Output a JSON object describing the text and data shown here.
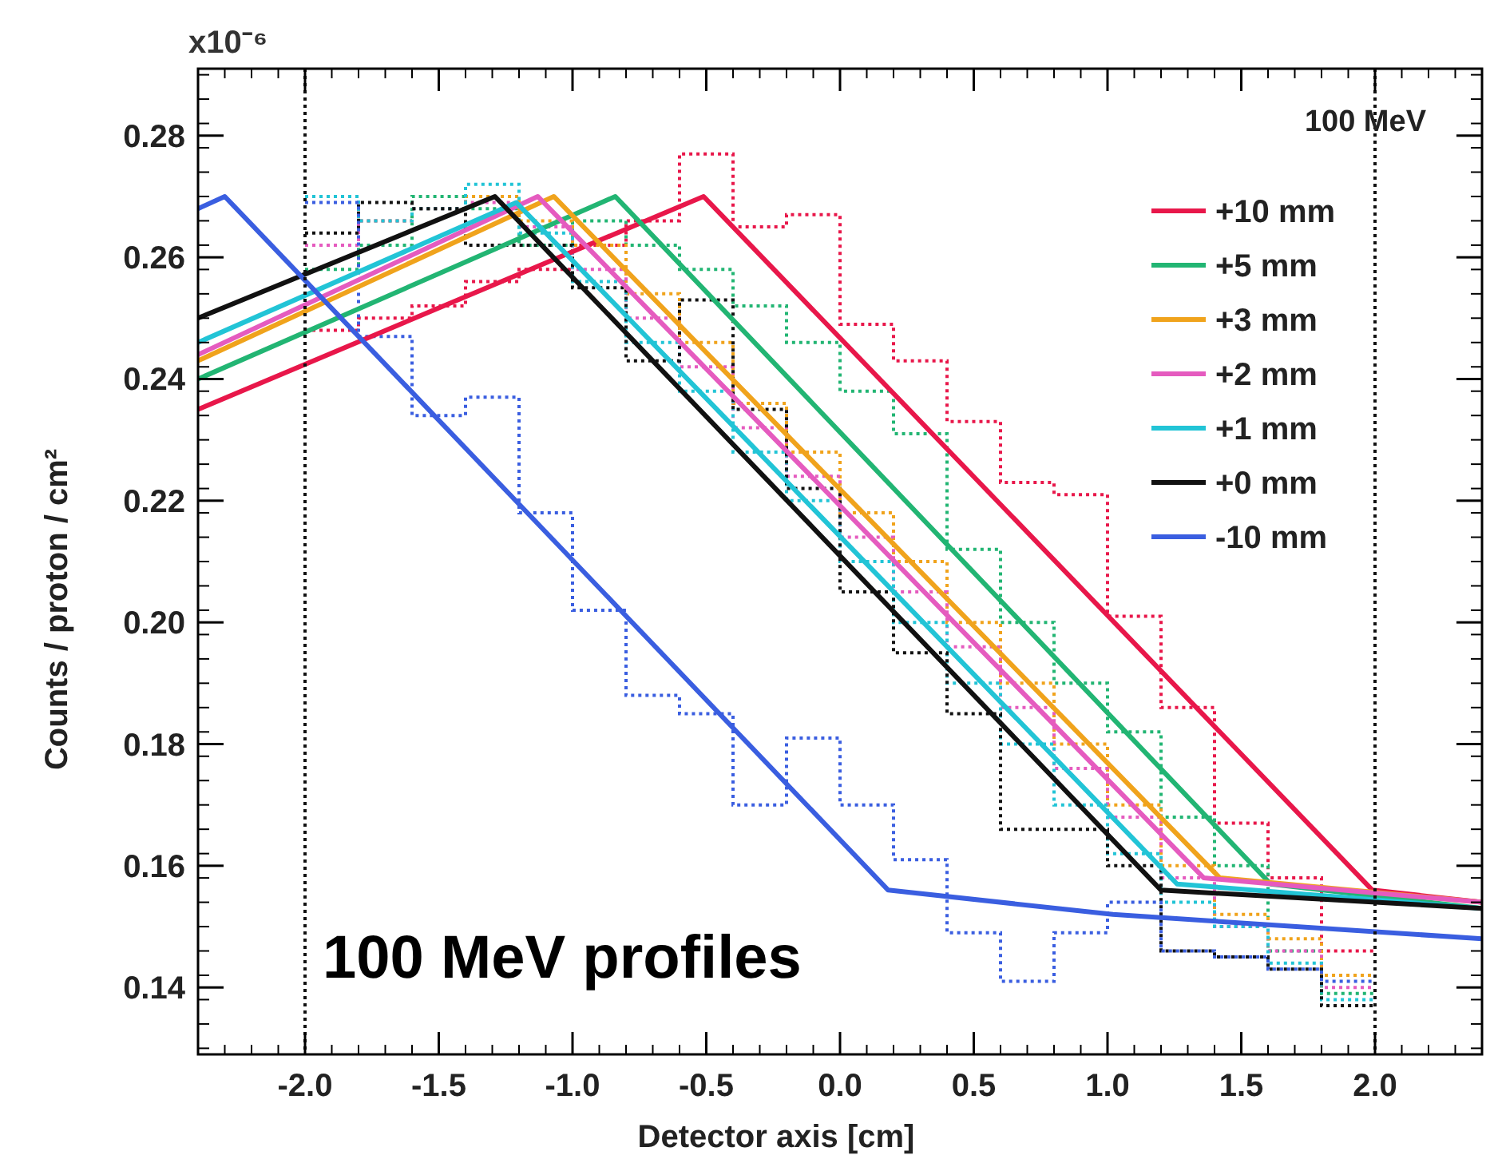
{
  "chart_data": {
    "type": "line",
    "ylabel": "Counts / proton / cm²",
    "xlabel": "Detector axis [cm]",
    "legend_title": "100 MeV",
    "annotations": [
      "x10⁻⁶",
      "100 MeV profiles"
    ],
    "xlim": [
      -2.4,
      2.4
    ],
    "ylim": [
      0.129,
      0.291
    ],
    "xticks": [
      {
        "value": -2,
        "label": "-2.0"
      },
      {
        "value": -1.5,
        "label": "-1.5"
      },
      {
        "value": -1,
        "label": "-1.0"
      },
      {
        "value": -0.5,
        "label": "-0.5"
      },
      {
        "value": 0,
        "label": "0.0"
      },
      {
        "value": 0.5,
        "label": "0.5"
      },
      {
        "value": 1,
        "label": "1.0"
      },
      {
        "value": 1.5,
        "label": "1.5"
      },
      {
        "value": 2,
        "label": "2.0"
      }
    ],
    "yticks": [
      {
        "value": 0.14,
        "label": "0.14"
      },
      {
        "value": 0.16,
        "label": "0.16"
      },
      {
        "value": 0.18,
        "label": "0.18"
      },
      {
        "value": 0.2,
        "label": "0.20"
      },
      {
        "value": 0.22,
        "label": "0.22"
      },
      {
        "value": 0.24,
        "label": "0.24"
      },
      {
        "value": 0.26,
        "label": "0.26"
      },
      {
        "value": 0.28,
        "label": "0.28"
      }
    ],
    "grid": false,
    "legend": "top right",
    "marker": "none",
    "ref_lines": [
      {
        "axis": "x",
        "value": -2,
        "label": null,
        "color": "#111111",
        "line_style": "dotted"
      },
      {
        "axis": "x",
        "value": 2,
        "label": null,
        "color": "#111111",
        "line_style": "dotted"
      }
    ],
    "series": [
      {
        "type": "histogram",
        "line_style": "dotted",
        "color": "#e8174a",
        "bins": [
          -2,
          -1.8,
          -1.6,
          -1.4,
          -1.2,
          -1,
          -0.8,
          -0.6,
          -0.4,
          -0.2,
          0,
          0.2,
          0.4,
          0.6,
          0.8,
          1,
          1.2,
          1.4,
          1.6,
          1.8,
          2
        ],
        "values": [
          0.248,
          0.25,
          0.252,
          0.256,
          0.258,
          0.262,
          0.266,
          0.277,
          0.265,
          0.267,
          0.249,
          0.243,
          0.233,
          0.223,
          0.221,
          0.201,
          0.186,
          0.167,
          0.158,
          0.146
        ]
      },
      {
        "type": "histogram",
        "line_style": "dotted",
        "color": "#22b573",
        "bins": [
          -2,
          -1.8,
          -1.6,
          -1.4,
          -1.2,
          -1,
          -0.8,
          -0.6,
          -0.4,
          -0.2,
          0,
          0.2,
          0.4,
          0.6,
          0.8,
          1,
          1.2,
          1.4,
          1.6,
          1.8,
          2
        ],
        "values": [
          0.258,
          0.262,
          0.27,
          0.268,
          0.262,
          0.266,
          0.262,
          0.258,
          0.252,
          0.246,
          0.238,
          0.231,
          0.212,
          0.2,
          0.19,
          0.182,
          0.168,
          0.16,
          0.146,
          0.139
        ]
      },
      {
        "type": "histogram",
        "line_style": "dotted",
        "color": "#f0a31c",
        "bins": [
          -2,
          -1.8,
          -1.6,
          -1.4,
          -1.2,
          -1,
          -0.8,
          -0.6,
          -0.4,
          -0.2,
          0,
          0.2,
          0.4,
          0.6,
          0.8,
          1,
          1.2,
          1.4,
          1.6,
          1.8,
          2
        ],
        "values": [
          0.262,
          0.266,
          0.268,
          0.27,
          0.266,
          0.262,
          0.254,
          0.246,
          0.236,
          0.228,
          0.218,
          0.21,
          0.2,
          0.19,
          0.18,
          0.17,
          0.16,
          0.152,
          0.148,
          0.142
        ]
      },
      {
        "type": "histogram",
        "line_style": "dotted",
        "color": "#e55bbf",
        "bins": [
          -2,
          -1.8,
          -1.6,
          -1.4,
          -1.2,
          -1,
          -0.8,
          -0.6,
          -0.4,
          -0.2,
          0,
          0.2,
          0.4,
          0.6,
          0.8,
          1,
          1.2,
          1.4,
          1.6,
          1.8,
          2
        ],
        "values": [
          0.262,
          0.266,
          0.268,
          0.269,
          0.265,
          0.258,
          0.25,
          0.242,
          0.232,
          0.224,
          0.214,
          0.205,
          0.196,
          0.186,
          0.176,
          0.168,
          0.158,
          0.15,
          0.146,
          0.14
        ]
      },
      {
        "type": "histogram",
        "line_style": "dotted",
        "color": "#22c4d6",
        "bins": [
          -2,
          -1.8,
          -1.6,
          -1.4,
          -1.2,
          -1,
          -0.8,
          -0.6,
          -0.4,
          -0.2,
          0,
          0.2,
          0.4,
          0.6,
          0.8,
          1,
          1.2,
          1.4,
          1.6,
          1.8,
          2
        ],
        "values": [
          0.27,
          0.266,
          0.268,
          0.272,
          0.264,
          0.256,
          0.246,
          0.238,
          0.228,
          0.22,
          0.21,
          0.2,
          0.19,
          0.18,
          0.17,
          0.162,
          0.154,
          0.15,
          0.144,
          0.138
        ]
      },
      {
        "type": "histogram",
        "line_style": "dotted",
        "color": "#111111",
        "bins": [
          -2,
          -1.8,
          -1.6,
          -1.4,
          -1.2,
          -1,
          -0.8,
          -0.6,
          -0.4,
          -0.2,
          0,
          0.2,
          0.4,
          0.6,
          0.8,
          1,
          1.2,
          1.4,
          1.6,
          1.8,
          2
        ],
        "values": [
          0.264,
          0.269,
          0.268,
          0.262,
          0.262,
          0.255,
          0.243,
          0.253,
          0.235,
          0.222,
          0.205,
          0.195,
          0.185,
          0.166,
          0.166,
          0.16,
          0.146,
          0.145,
          0.143,
          0.137
        ]
      },
      {
        "type": "histogram",
        "line_style": "dotted",
        "color": "#3a5ee0",
        "bins": [
          -2,
          -1.8,
          -1.6,
          -1.4,
          -1.2,
          -1,
          -0.8,
          -0.6,
          -0.4,
          -0.2,
          0,
          0.2,
          0.4,
          0.6,
          0.8,
          1,
          1.2,
          1.4,
          1.6,
          1.8,
          2
        ],
        "values": [
          0.269,
          0.247,
          0.234,
          0.237,
          0.218,
          0.202,
          0.188,
          0.185,
          0.17,
          0.181,
          0.17,
          0.161,
          0.149,
          0.141,
          0.149,
          0.154,
          0.146,
          0.145,
          0.143,
          0.141
        ]
      },
      {
        "line_style": "solid",
        "name": "+10 mm",
        "color": "#e8174a",
        "x": [
          -2.4,
          -0.51,
          1.99,
          2.4
        ],
        "values": [
          0.235,
          0.27,
          0.156,
          0.154
        ]
      },
      {
        "line_style": "solid",
        "name": "+5 mm",
        "color": "#22b573",
        "x": [
          -2.4,
          -0.84,
          1.61,
          2.4
        ],
        "values": [
          0.24,
          0.27,
          0.157,
          0.153
        ]
      },
      {
        "line_style": "solid",
        "name": "+3 mm",
        "color": "#f0a31c",
        "x": [
          -2.4,
          -1.07,
          1.42,
          2.4
        ],
        "values": [
          0.243,
          0.27,
          0.158,
          0.154
        ]
      },
      {
        "line_style": "solid",
        "name": "+2 mm",
        "color": "#e55bbf",
        "x": [
          -2.4,
          -1.13,
          1.36,
          2.4
        ],
        "values": [
          0.244,
          0.27,
          0.158,
          0.154
        ]
      },
      {
        "line_style": "solid",
        "name": "+1 mm",
        "color": "#22c4d6",
        "x": [
          -2.4,
          -1.21,
          1.26,
          2.4
        ],
        "values": [
          0.246,
          0.269,
          0.157,
          0.153
        ]
      },
      {
        "line_style": "solid",
        "name": "+0 mm",
        "color": "#111111",
        "x": [
          -2.4,
          -1.29,
          1.2,
          2.4
        ],
        "values": [
          0.25,
          0.27,
          0.156,
          0.153
        ]
      },
      {
        "line_style": "solid",
        "name": "-10 mm",
        "color": "#3a5ee0",
        "x": [
          -2.4,
          -2.3,
          0.18,
          1.02,
          2.4
        ],
        "values": [
          0.268,
          0.27,
          0.156,
          0.152,
          0.148
        ]
      }
    ]
  }
}
